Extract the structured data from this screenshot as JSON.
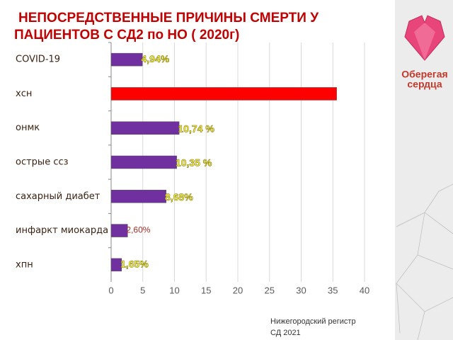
{
  "chart_data": {
    "type": "bar",
    "orientation": "horizontal",
    "title": [
      "НЕПОСРЕДСТВЕННЫЕ ПРИЧИНЫ СМЕРТИ  У",
      "ПАЦИЕНТОВ С СД2   по НО  ( 2020г)"
    ],
    "categories": [
      "COVID-19",
      "хсн",
      "онмк",
      "острые ссз",
      "сахарный диабет",
      "инфаркт миокарда",
      "хпн"
    ],
    "values": [
      4.94,
      35.6,
      10.74,
      10.35,
      8.68,
      2.6,
      1.65
    ],
    "value_labels": [
      "4,94%",
      null,
      "10,74 %",
      "10,35 %",
      "8,68%",
      "2,60%",
      "1,65%"
    ],
    "colors": [
      "#7030a0",
      "#ff0000",
      "#7030a0",
      "#7030a0",
      "#7030a0",
      "#7030a0",
      "#7030a0"
    ],
    "xlim": [
      0,
      40
    ],
    "xticks": [
      0,
      5,
      10,
      15,
      20,
      25,
      30,
      35,
      40
    ],
    "grid": true
  },
  "logo": [
    "Оберегая",
    "сердца"
  ],
  "footnote": [
    "Нижегородский регистр",
    "СД 2021"
  ]
}
